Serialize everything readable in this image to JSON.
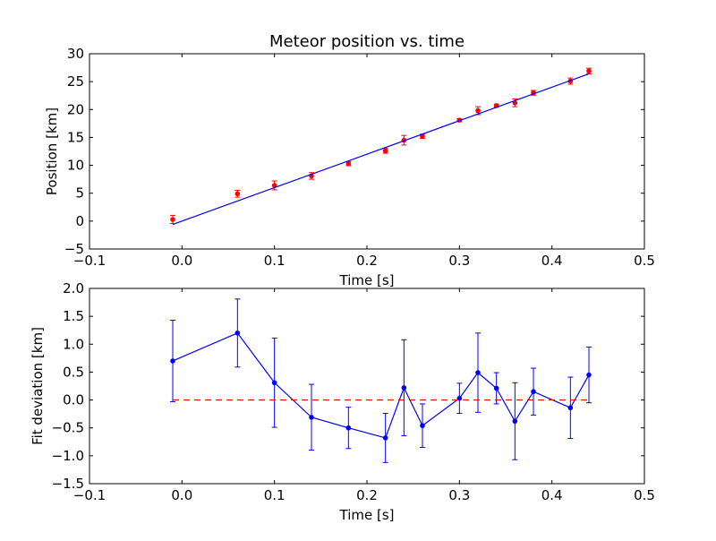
{
  "chart_data": [
    {
      "type": "scatter",
      "title": "Meteor position vs. time",
      "xlabel": "Time [s]",
      "ylabel": "Position [km]",
      "xlim": [
        -0.1,
        0.5
      ],
      "ylim": [
        -5,
        30
      ],
      "xticks": [
        "−0.1",
        "0.0",
        "0.1",
        "0.2",
        "0.3",
        "0.4",
        "0.5"
      ],
      "yticks": [
        "−5",
        "0",
        "5",
        "10",
        "15",
        "20",
        "25",
        "30"
      ],
      "grid": false,
      "series": [
        {
          "kind": "errorbar-points",
          "color": "#ff0000",
          "x": [
            -0.01,
            0.06,
            0.1,
            0.14,
            0.18,
            0.22,
            0.24,
            0.26,
            0.3,
            0.32,
            0.34,
            0.36,
            0.38,
            0.42,
            0.44
          ],
          "y": [
            0.3,
            4.9,
            6.4,
            8.1,
            10.3,
            12.6,
            14.5,
            15.2,
            18.1,
            19.8,
            20.7,
            21.2,
            23.0,
            25.1,
            26.9
          ],
          "yerr": [
            0.73,
            0.61,
            0.8,
            0.59,
            0.37,
            0.44,
            0.86,
            0.39,
            0.27,
            0.71,
            0.28,
            0.69,
            0.42,
            0.55,
            0.5
          ]
        },
        {
          "kind": "fit-line",
          "color": "#0000ff",
          "x": [
            -0.01,
            0.44
          ],
          "y": [
            -0.6,
            26.4
          ]
        }
      ]
    },
    {
      "type": "line",
      "title": "",
      "xlabel": "Time [s]",
      "ylabel": "Fit deviation [km]",
      "xlim": [
        -0.1,
        0.5
      ],
      "ylim": [
        -1.5,
        2.0
      ],
      "xticks": [
        "−0.1",
        "0.0",
        "0.1",
        "0.2",
        "0.3",
        "0.4",
        "0.5"
      ],
      "yticks": [
        "−1.5",
        "−1.0",
        "−0.5",
        "0.0",
        "0.5",
        "1.0",
        "1.5",
        "2.0"
      ],
      "grid": false,
      "series": [
        {
          "kind": "errorbar-line",
          "color": "#0000ff",
          "x": [
            -0.01,
            0.06,
            0.1,
            0.14,
            0.18,
            0.22,
            0.24,
            0.26,
            0.3,
            0.32,
            0.34,
            0.36,
            0.38,
            0.42,
            0.44
          ],
          "y": [
            0.7,
            1.2,
            0.31,
            -0.31,
            -0.5,
            -0.68,
            0.22,
            -0.46,
            0.03,
            0.49,
            0.21,
            -0.38,
            0.15,
            -0.14,
            0.45
          ],
          "yerr": [
            0.73,
            0.61,
            0.8,
            0.59,
            0.37,
            0.44,
            0.86,
            0.39,
            0.27,
            0.71,
            0.28,
            0.69,
            0.42,
            0.55,
            0.5
          ]
        },
        {
          "kind": "reference-line",
          "color": "#ff0000",
          "dashed": true,
          "x": [
            -0.01,
            0.44
          ],
          "y": [
            0.0,
            0.0
          ]
        }
      ]
    }
  ]
}
